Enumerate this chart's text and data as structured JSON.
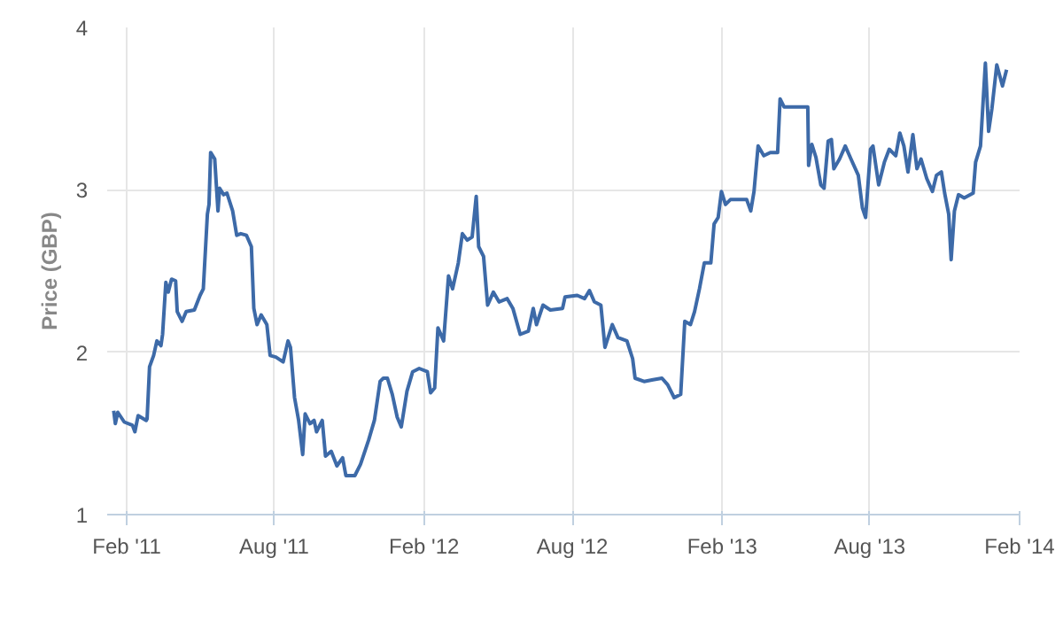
{
  "chart_data": {
    "type": "line",
    "ylabel": "Price (GBP)",
    "xlim": [
      "2011-01-08",
      "2014-02-01"
    ],
    "ylim": [
      1,
      4
    ],
    "xticks": [
      {
        "value": "2011-02-01",
        "label": "Feb '11"
      },
      {
        "value": "2011-08-01",
        "label": "Aug '11"
      },
      {
        "value": "2012-02-01",
        "label": "Feb '12"
      },
      {
        "value": "2012-08-01",
        "label": "Aug '12"
      },
      {
        "value": "2013-02-01",
        "label": "Feb '13"
      },
      {
        "value": "2013-08-01",
        "label": "Aug '13"
      },
      {
        "value": "2014-02-01",
        "label": "Feb '14"
      }
    ],
    "yticks": [
      1,
      2,
      3,
      4
    ],
    "grid": true,
    "marker": "none",
    "line_style": "solid",
    "series": [
      {
        "color": "#3d6aa8",
        "x": [
          "2011-01-16",
          "2011-01-18",
          "2011-01-21",
          "2011-01-29",
          "2011-02-08",
          "2011-02-11",
          "2011-02-15",
          "2011-02-25",
          "2011-02-26",
          "2011-03-01",
          "2011-03-06",
          "2011-03-10",
          "2011-03-15",
          "2011-03-17",
          "2011-03-21",
          "2011-03-24",
          "2011-03-28",
          "2011-04-02",
          "2011-04-04",
          "2011-04-10",
          "2011-04-15",
          "2011-04-25",
          "2011-05-02",
          "2011-05-06",
          "2011-05-11",
          "2011-05-13",
          "2011-05-15",
          "2011-05-20",
          "2011-05-24",
          "2011-05-26",
          "2011-05-31",
          "2011-06-04",
          "2011-06-11",
          "2011-06-16",
          "2011-06-21",
          "2011-06-28",
          "2011-07-04",
          "2011-07-07",
          "2011-07-11",
          "2011-07-16",
          "2011-07-23",
          "2011-07-27",
          "2011-08-03",
          "2011-08-12",
          "2011-08-18",
          "2011-08-21",
          "2011-08-26",
          "2011-08-31",
          "2011-09-05",
          "2011-09-08",
          "2011-09-14",
          "2011-09-19",
          "2011-09-22",
          "2011-09-29",
          "2011-10-03",
          "2011-10-10",
          "2011-10-17",
          "2011-10-24",
          "2011-10-28",
          "2011-11-08",
          "2011-11-15",
          "2011-11-25",
          "2011-12-02",
          "2011-12-09",
          "2011-12-13",
          "2011-12-18",
          "2011-12-24",
          "2011-12-30",
          "2012-01-04",
          "2012-01-11",
          "2012-01-18",
          "2012-01-26",
          "2012-02-05",
          "2012-02-09",
          "2012-02-14",
          "2012-02-18",
          "2012-02-25",
          "2012-03-02",
          "2012-03-07",
          "2012-03-14",
          "2012-03-19",
          "2012-03-25",
          "2012-03-31",
          "2012-04-05",
          "2012-04-08",
          "2012-04-14",
          "2012-04-19",
          "2012-04-26",
          "2012-05-03",
          "2012-05-13",
          "2012-05-20",
          "2012-05-29",
          "2012-06-08",
          "2012-06-14",
          "2012-06-18",
          "2012-06-26",
          "2012-07-05",
          "2012-07-20",
          "2012-07-23",
          "2012-08-07",
          "2012-08-16",
          "2012-08-22",
          "2012-08-28",
          "2012-09-05",
          "2012-09-10",
          "2012-09-19",
          "2012-09-26",
          "2012-10-07",
          "2012-10-14",
          "2012-10-17",
          "2012-10-28",
          "2012-11-08",
          "2012-11-19",
          "2012-11-26",
          "2012-12-04",
          "2012-12-12",
          "2012-12-17",
          "2012-12-24",
          "2012-12-29",
          "2013-01-04",
          "2013-01-10",
          "2013-01-18",
          "2013-01-22",
          "2013-01-27",
          "2013-01-31",
          "2013-02-05",
          "2013-02-11",
          "2013-03-03",
          "2013-03-08",
          "2013-03-12",
          "2013-03-17",
          "2013-03-24",
          "2013-04-01",
          "2013-04-10",
          "2013-04-13",
          "2013-04-18",
          "2013-05-17",
          "2013-05-18",
          "2013-05-22",
          "2013-05-27",
          "2013-06-02",
          "2013-06-06",
          "2013-06-11",
          "2013-06-15",
          "2013-06-18",
          "2013-06-25",
          "2013-07-02",
          "2013-07-09",
          "2013-07-18",
          "2013-07-23",
          "2013-07-27",
          "2013-08-02",
          "2013-08-05",
          "2013-08-12",
          "2013-08-19",
          "2013-08-25",
          "2013-09-02",
          "2013-09-07",
          "2013-09-12",
          "2013-09-17",
          "2013-09-23",
          "2013-09-28",
          "2013-10-03",
          "2013-10-10",
          "2013-10-17",
          "2013-10-22",
          "2013-10-28",
          "2013-11-01",
          "2013-11-06",
          "2013-11-09",
          "2013-11-13",
          "2013-11-18",
          "2013-11-25",
          "2013-12-06",
          "2013-12-09",
          "2013-12-15",
          "2013-12-21",
          "2013-12-25",
          "2013-12-29",
          "2014-01-04",
          "2014-01-11",
          "2014-01-16"
        ],
        "values": [
          1.64,
          1.56,
          1.63,
          1.57,
          1.55,
          1.51,
          1.61,
          1.58,
          1.59,
          1.91,
          1.98,
          2.07,
          2.04,
          2.11,
          2.43,
          2.37,
          2.45,
          2.44,
          2.25,
          2.19,
          2.25,
          2.26,
          2.35,
          2.39,
          2.85,
          2.91,
          3.23,
          3.19,
          2.87,
          3.01,
          2.97,
          2.98,
          2.87,
          2.72,
          2.73,
          2.72,
          2.65,
          2.27,
          2.17,
          2.23,
          2.17,
          1.98,
          1.97,
          1.94,
          2.07,
          2.03,
          1.72,
          1.58,
          1.37,
          1.62,
          1.56,
          1.58,
          1.51,
          1.58,
          1.36,
          1.39,
          1.3,
          1.35,
          1.24,
          1.24,
          1.31,
          1.46,
          1.58,
          1.82,
          1.84,
          1.84,
          1.74,
          1.6,
          1.54,
          1.76,
          1.88,
          1.9,
          1.88,
          1.75,
          1.78,
          2.15,
          2.07,
          2.47,
          2.39,
          2.55,
          2.73,
          2.69,
          2.71,
          2.96,
          2.65,
          2.59,
          2.29,
          2.37,
          2.31,
          2.33,
          2.27,
          2.11,
          2.13,
          2.27,
          2.17,
          2.29,
          2.26,
          2.27,
          2.34,
          2.35,
          2.33,
          2.38,
          2.31,
          2.29,
          2.03,
          2.17,
          2.09,
          2.07,
          1.96,
          1.84,
          1.82,
          1.83,
          1.84,
          1.8,
          1.72,
          1.74,
          2.19,
          2.17,
          2.25,
          2.39,
          2.55,
          2.55,
          2.79,
          2.83,
          2.99,
          2.91,
          2.94,
          2.94,
          2.87,
          2.99,
          3.27,
          3.21,
          3.23,
          3.23,
          3.56,
          3.51,
          3.51,
          3.15,
          3.28,
          3.2,
          3.03,
          3.01,
          3.3,
          3.31,
          3.13,
          3.19,
          3.27,
          3.19,
          3.09,
          2.89,
          2.83,
          3.25,
          3.27,
          3.03,
          3.17,
          3.25,
          3.21,
          3.35,
          3.27,
          3.11,
          3.34,
          3.13,
          3.19,
          3.07,
          2.99,
          3.09,
          3.11,
          2.98,
          2.85,
          2.57,
          2.87,
          2.97,
          2.95,
          2.98,
          3.17,
          3.27,
          3.78,
          3.36,
          3.5,
          3.77,
          3.64,
          3.74
        ]
      }
    ]
  }
}
